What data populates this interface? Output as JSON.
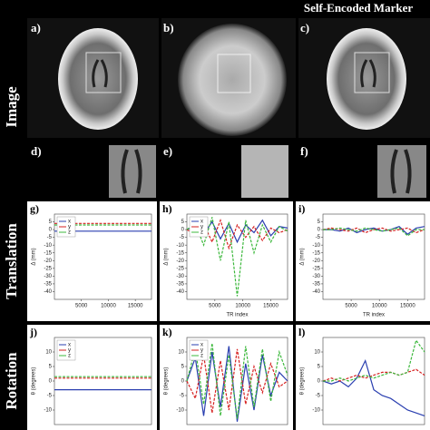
{
  "header": {
    "title": "Self-Encoded Marker"
  },
  "row_labels": [
    "Image",
    "Translation",
    "Rotation"
  ],
  "image_panels": {
    "labels": [
      "a)",
      "b)",
      "c)"
    ]
  },
  "zoom_panels": {
    "labels": [
      "d)",
      "e)",
      "f)"
    ]
  },
  "chart_data": [
    {
      "type": "line",
      "label": "g)",
      "ylabel": "Δ (mm)",
      "xlim": [
        0,
        18000
      ],
      "ylim": [
        -45,
        10
      ],
      "xticks": [
        5000,
        10000,
        15000
      ],
      "yticks": [
        5,
        0,
        -5,
        -10,
        -15,
        -20,
        -25,
        -30,
        -35,
        -40
      ],
      "legend": "upper left",
      "x": [
        0,
        1500,
        3000,
        4500,
        6000,
        7500,
        9000,
        10500,
        12000,
        13500,
        15000,
        16500,
        18000
      ],
      "series": [
        {
          "name": "x",
          "color": "#2a3fb0",
          "values": [
            -1,
            -1,
            -1,
            -1,
            -1,
            -1,
            -1,
            -1,
            -1,
            -1,
            -1,
            -1,
            -1
          ]
        },
        {
          "name": "y",
          "color": "#d62020",
          "values": [
            4,
            4,
            4,
            4,
            4,
            4,
            4,
            4,
            4,
            4,
            4,
            4,
            4
          ]
        },
        {
          "name": "z",
          "color": "#3cb83c",
          "values": [
            3,
            3,
            3,
            3,
            3,
            3,
            3,
            3,
            3,
            3,
            3,
            3,
            3
          ]
        }
      ]
    },
    {
      "type": "line",
      "label": "h)",
      "ylabel": "Δ (mm)",
      "xlabel": "TR index",
      "xlim": [
        0,
        18000
      ],
      "ylim": [
        -45,
        10
      ],
      "xticks": [
        5000,
        10000,
        15000
      ],
      "yticks": [
        5,
        0,
        -5,
        -10,
        -15,
        -20,
        -25,
        -30,
        -35,
        -40
      ],
      "legend": "upper left",
      "x": [
        0,
        1500,
        3000,
        4500,
        6000,
        7500,
        9000,
        10500,
        12000,
        13500,
        15000,
        16500,
        18000
      ],
      "series": [
        {
          "name": "x",
          "color": "#2a3fb0",
          "values": [
            0,
            2,
            -3,
            5,
            -6,
            4,
            -8,
            3,
            -2,
            6,
            -4,
            2,
            1
          ]
        },
        {
          "name": "y",
          "color": "#d62020",
          "values": [
            0,
            -3,
            4,
            -8,
            6,
            -12,
            3,
            -5,
            2,
            -7,
            1,
            -2,
            0
          ]
        },
        {
          "name": "z",
          "color": "#3cb83c",
          "values": [
            0,
            4,
            -10,
            8,
            -20,
            5,
            -43,
            6,
            -15,
            3,
            -8,
            2,
            -1
          ]
        }
      ]
    },
    {
      "type": "line",
      "label": "i)",
      "ylabel": "Δ (mm)",
      "xlabel": "TR index",
      "xlim": [
        0,
        18000
      ],
      "ylim": [
        -45,
        10
      ],
      "xticks": [
        5000,
        10000,
        15000
      ],
      "yticks": [
        5,
        0,
        -5,
        -10,
        -15,
        -20,
        -25,
        -30,
        -35,
        -40
      ],
      "x": [
        0,
        1500,
        3000,
        4500,
        6000,
        7500,
        9000,
        10500,
        12000,
        13500,
        15000,
        16500,
        18000
      ],
      "series": [
        {
          "color": "#2a3fb0",
          "values": [
            0,
            0,
            -1,
            1,
            -2,
            0,
            1,
            -1,
            0,
            2,
            -3,
            1,
            2
          ]
        },
        {
          "color": "#d62020",
          "values": [
            0,
            1,
            0,
            -1,
            1,
            -2,
            0,
            1,
            -1,
            0,
            1,
            -2,
            0
          ]
        },
        {
          "color": "#3cb83c",
          "values": [
            0,
            0,
            1,
            0,
            -1,
            1,
            0,
            -1,
            0,
            1,
            -4,
            0,
            0
          ]
        }
      ]
    },
    {
      "type": "line",
      "label": "j)",
      "ylabel": "θ (degrees)",
      "xlim": [
        0,
        18000
      ],
      "ylim": [
        -15,
        15
      ],
      "yticks": [
        10,
        5,
        0,
        -5,
        -10
      ],
      "legend": "upper left",
      "x": [
        0,
        1500,
        3000,
        4500,
        6000,
        7500,
        9000,
        10500,
        12000,
        13500,
        15000,
        16500,
        18000
      ],
      "series": [
        {
          "name": "x",
          "color": "#2a3fb0",
          "values": [
            -3,
            -3,
            -3,
            -3,
            -3,
            -3,
            -3,
            -3,
            -3,
            -3,
            -3,
            -3,
            -3
          ]
        },
        {
          "name": "y",
          "color": "#d62020",
          "values": [
            1,
            1,
            1,
            1,
            1,
            1,
            1,
            1,
            1,
            1,
            1,
            1,
            1
          ]
        },
        {
          "name": "z",
          "color": "#3cb83c",
          "values": [
            1.5,
            1.5,
            1.5,
            1.5,
            1.5,
            1.5,
            1.5,
            1.5,
            1.5,
            1.5,
            1.5,
            1.5,
            1.5
          ]
        }
      ]
    },
    {
      "type": "line",
      "label": "k)",
      "ylabel": "θ (degrees)",
      "xlim": [
        0,
        18000
      ],
      "ylim": [
        -15,
        15
      ],
      "yticks": [
        10,
        5,
        0,
        -5,
        -10
      ],
      "legend": "upper left",
      "x": [
        0,
        1500,
        3000,
        4500,
        6000,
        7500,
        9000,
        10500,
        12000,
        13500,
        15000,
        16500,
        18000
      ],
      "series": [
        {
          "name": "x",
          "color": "#2a3fb0",
          "values": [
            0,
            8,
            -12,
            10,
            -9,
            12,
            -14,
            6,
            -10,
            9,
            -5,
            3,
            0
          ]
        },
        {
          "name": "y",
          "color": "#d62020",
          "values": [
            0,
            -6,
            9,
            -11,
            7,
            -10,
            11,
            -8,
            5,
            -4,
            6,
            -2,
            0
          ]
        },
        {
          "name": "z",
          "color": "#3cb83c",
          "values": [
            0,
            11,
            -8,
            13,
            -12,
            9,
            -13,
            12,
            -9,
            11,
            -7,
            10,
            2
          ]
        }
      ]
    },
    {
      "type": "line",
      "label": "l)",
      "ylabel": "θ (degrees)",
      "xlim": [
        0,
        18000
      ],
      "ylim": [
        -15,
        15
      ],
      "yticks": [
        10,
        5,
        0,
        -5,
        -10
      ],
      "x": [
        0,
        1500,
        3000,
        4500,
        6000,
        7500,
        9000,
        10500,
        12000,
        13500,
        15000,
        16500,
        18000
      ],
      "series": [
        {
          "color": "#2a3fb0",
          "values": [
            0,
            -1,
            0,
            -2,
            1,
            7,
            -3,
            -5,
            -6,
            -8,
            -10,
            -11,
            -12
          ]
        },
        {
          "color": "#d62020",
          "values": [
            0,
            1,
            0,
            1,
            2,
            1,
            2,
            3,
            3,
            2,
            3,
            4,
            2
          ]
        },
        {
          "color": "#3cb83c",
          "values": [
            0,
            0,
            1,
            0,
            1,
            2,
            1,
            2,
            3,
            2,
            3,
            14,
            10
          ]
        }
      ]
    }
  ]
}
